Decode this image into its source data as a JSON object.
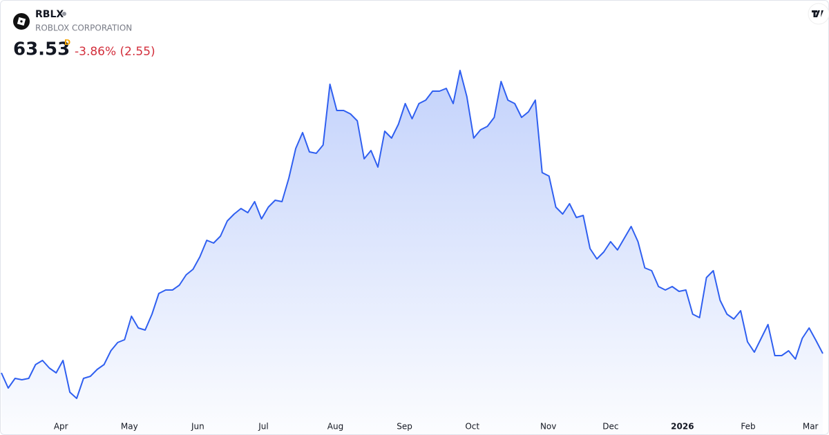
{
  "header": {
    "symbol": "RBLX",
    "name": "ROBLOX CORPORATION",
    "price": 63.53,
    "interval": "D",
    "change": "-3.86% (2.55)"
  },
  "chart_data": {
    "type": "area-line",
    "color": "#2f5ff0",
    "values": [
      57.62,
      52.99,
      55.94,
      55.52,
      55.94,
      60.16,
      61.42,
      59.1,
      57.62,
      61.42,
      51.72,
      49.82,
      55.94,
      56.57,
      58.68,
      60.16,
      64.37,
      66.9,
      67.75,
      74.92,
      71.33,
      70.7,
      75.55,
      81.88,
      82.93,
      82.93,
      84.41,
      87.57,
      89.26,
      93.06,
      98.12,
      97.27,
      99.38,
      104.02,
      106.13,
      107.82,
      106.55,
      109.93,
      104.66,
      108.24,
      110.35,
      109.93,
      117.1,
      126.17,
      131.02,
      125.11,
      124.69,
      127.22,
      145.78,
      137.77,
      137.77,
      136.71,
      134.6,
      123.0,
      125.53,
      120.47,
      131.44,
      129.33,
      133.55,
      139.88,
      135.24,
      139.88,
      140.93,
      143.67,
      143.67,
      144.52,
      139.88,
      150.0,
      141.98,
      129.33,
      131.86,
      132.92,
      135.66,
      146.62,
      140.93,
      139.88,
      135.66,
      137.35,
      140.93,
      118.79,
      117.73,
      108.24,
      106.13,
      109.3,
      105.08,
      105.71,
      95.59,
      92.42,
      94.53,
      97.7,
      95.17,
      98.75,
      102.34,
      97.7,
      89.68,
      88.84,
      83.99,
      82.93,
      83.99,
      82.51,
      82.93,
      75.55,
      74.5,
      86.73,
      88.84,
      79.77,
      75.55,
      74.08,
      76.61,
      67.12,
      63.95,
      68.17,
      72.39,
      62.9,
      62.9,
      64.37,
      61.84,
      68.17,
      71.33,
      67.54,
      63.53
    ],
    "xticks": [
      {
        "value": 8.7,
        "label": "Apr"
      },
      {
        "value": 18.7,
        "label": "May"
      },
      {
        "value": 28.7,
        "label": "Jun"
      },
      {
        "value": 38.3,
        "label": "Jul"
      },
      {
        "value": 48.8,
        "label": "Aug"
      },
      {
        "value": 58.9,
        "label": "Sep"
      },
      {
        "value": 68.8,
        "label": "Oct"
      },
      {
        "value": 79.9,
        "label": "Nov"
      },
      {
        "value": 89.0,
        "label": "Dec"
      },
      {
        "value": 99.5,
        "label": "2026"
      },
      {
        "value": 109.1,
        "label": "Feb"
      },
      {
        "value": 118.2,
        "label": "Mar"
      }
    ]
  }
}
